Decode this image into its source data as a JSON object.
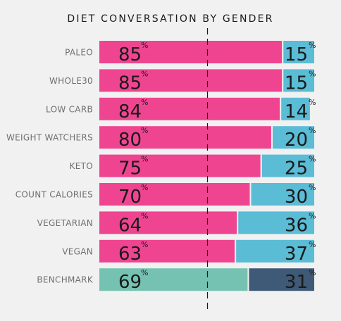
{
  "chart_data": {
    "type": "bar",
    "stacked": true,
    "orientation": "horizontal",
    "title": "DIET CONVERSATION BY GENDER",
    "xlabel": "",
    "ylabel": "",
    "xlim": [
      0,
      100
    ],
    "reference_line": 50,
    "grid": false,
    "value_suffix": "%",
    "categories": [
      "PALEO",
      "WHOLE30",
      "LOW CARB",
      "WEIGHT WATCHERS",
      "KETO",
      "COUNT CALORIES",
      "VEGETARIAN",
      "VEGAN",
      "BENCHMARK"
    ],
    "series": [
      {
        "values": [
          85,
          85,
          84,
          80,
          75,
          70,
          64,
          63,
          69
        ],
        "color": "#ef4591",
        "benchmark_color": "#76c2b2"
      },
      {
        "values": [
          15,
          15,
          14,
          20,
          25,
          30,
          36,
          37,
          31
        ],
        "color": "#5bbcd6",
        "benchmark_color": "#3e5a77"
      }
    ]
  }
}
